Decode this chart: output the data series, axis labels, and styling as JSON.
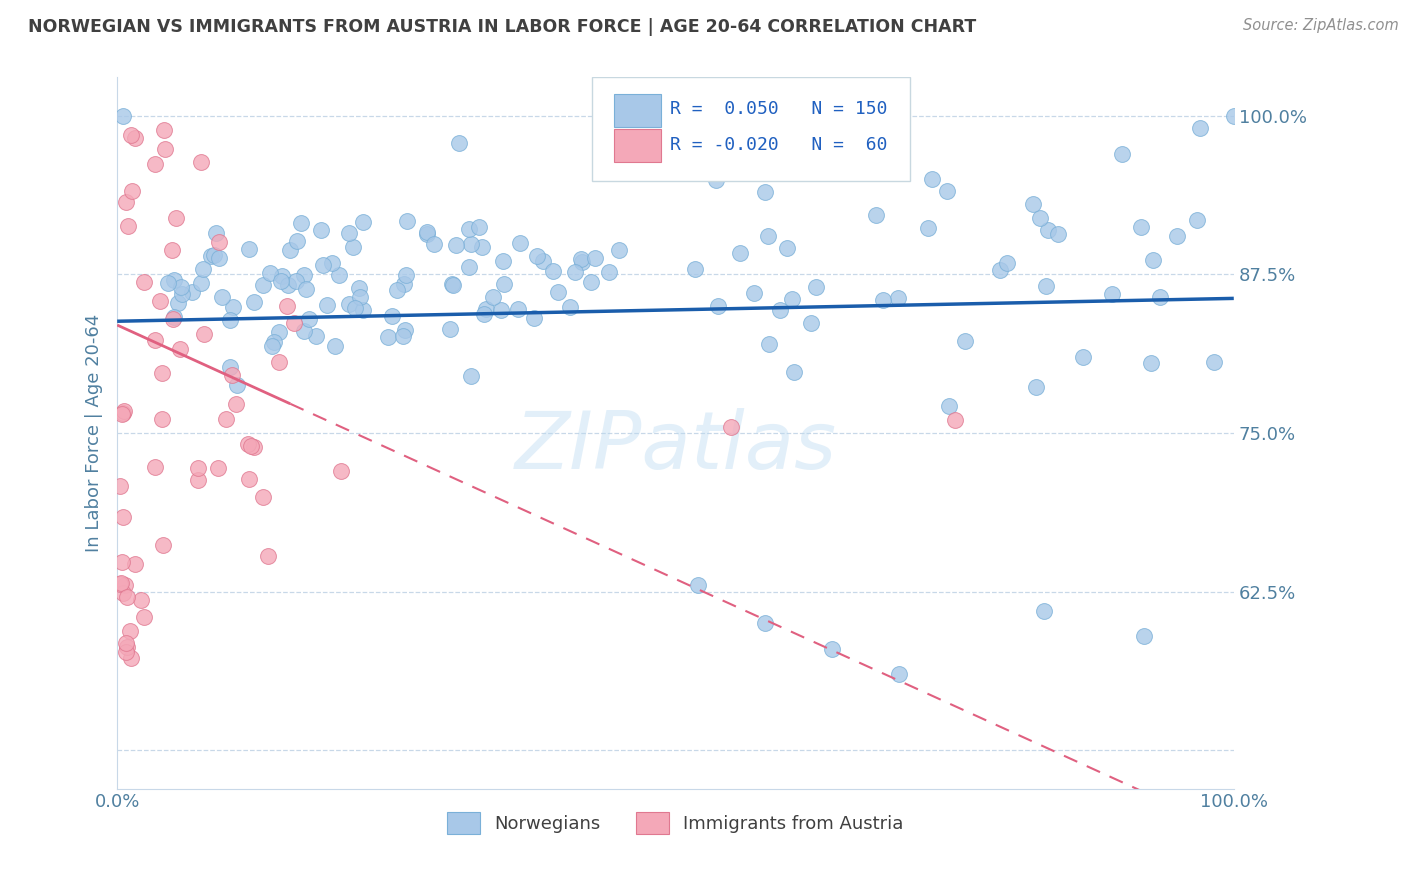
{
  "title": "NORWEGIAN VS IMMIGRANTS FROM AUSTRIA IN LABOR FORCE | AGE 20-64 CORRELATION CHART",
  "source": "Source: ZipAtlas.com",
  "ylabel": "In Labor Force | Age 20-64",
  "watermark": "ZIPatlas",
  "xlim": [
    0.0,
    1.0
  ],
  "ylim": [
    0.47,
    1.03
  ],
  "yticks": [
    0.5,
    0.625,
    0.75,
    0.875,
    1.0
  ],
  "ytick_labels": [
    "",
    "62.5%",
    "75.0%",
    "87.5%",
    "100.0%"
  ],
  "xticks": [
    0.0,
    0.25,
    0.5,
    0.75,
    1.0
  ],
  "xtick_labels": [
    "0.0%",
    "",
    "",
    "",
    "100.0%"
  ],
  "norwegian_color": "#a8c8e8",
  "norwegian_edge": "#7ab0d8",
  "austrian_color": "#f4a8b8",
  "austrian_edge": "#e07890",
  "trend_norwegian_color": "#1a5dab",
  "trend_austrian_color": "#e06080",
  "grid_color": "#c8d8e8",
  "background_color": "#ffffff",
  "title_color": "#404040",
  "axis_label_color": "#5080a0",
  "tick_color": "#5080a0",
  "legend_R_norwegian": "0.050",
  "legend_N_norwegian": "150",
  "legend_R_austrian": "-0.020",
  "legend_N_austrian": "60",
  "norwegian_intercept": 0.838,
  "norwegian_slope": 0.018,
  "austrian_intercept": 0.835,
  "austrian_slope": -0.4
}
